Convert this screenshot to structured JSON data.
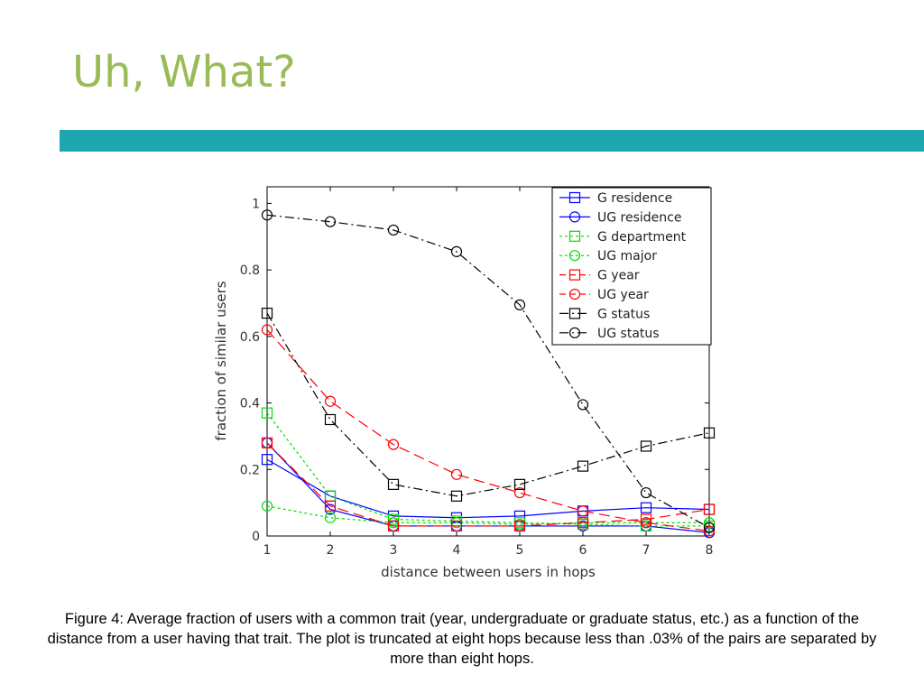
{
  "slide": {
    "title": "Uh, What?",
    "accent_color": "#9bbb59",
    "bar_color": "#1fa7b0"
  },
  "caption": "Figure 4: Average fraction of users with a common trait (year, undergraduate or graduate status, etc.) as a function of the distance from a user having that trait. The plot is truncated at eight hops because less than .03% of the pairs are separated by more than eight hops.",
  "chart_data": {
    "type": "line",
    "xlabel": "distance between users in hops",
    "ylabel": "fraction of similar users",
    "xlim": [
      1,
      8
    ],
    "ylim": [
      0,
      1.05
    ],
    "xticks": [
      "1",
      "2",
      "3",
      "4",
      "5",
      "6",
      "7",
      "8"
    ],
    "yticks": [
      "0",
      "0.2",
      "0.4",
      "0.6",
      "0.8",
      "1"
    ],
    "grid": false,
    "legend_position": "top-right",
    "x": [
      1,
      2,
      3,
      4,
      5,
      6,
      7,
      8
    ],
    "series": [
      {
        "name": "G residence",
        "color": "#0000ff",
        "dash": "solid",
        "marker": "square",
        "values": [
          0.23,
          0.12,
          0.06,
          0.055,
          0.06,
          0.075,
          0.085,
          0.08
        ]
      },
      {
        "name": "UG residence",
        "color": "#0000ff",
        "dash": "solid",
        "marker": "circle",
        "values": [
          0.28,
          0.08,
          0.03,
          0.03,
          0.03,
          0.03,
          0.03,
          0.01
        ]
      },
      {
        "name": "G department",
        "color": "#00dd00",
        "dash": "dotted",
        "marker": "square",
        "values": [
          0.37,
          0.12,
          0.05,
          0.045,
          0.04,
          0.035,
          0.03,
          0.03
        ]
      },
      {
        "name": "UG major",
        "color": "#00dd00",
        "dash": "dotted",
        "marker": "circle",
        "values": [
          0.09,
          0.055,
          0.04,
          0.04,
          0.035,
          0.04,
          0.04,
          0.04
        ]
      },
      {
        "name": "G year",
        "color": "#ff0000",
        "dash": "dashed",
        "marker": "square",
        "values": [
          0.28,
          0.09,
          0.03,
          0.03,
          0.03,
          0.04,
          0.05,
          0.08
        ]
      },
      {
        "name": "UG year",
        "color": "#ff0000",
        "dash": "dashed",
        "marker": "circle",
        "values": [
          0.62,
          0.405,
          0.275,
          0.185,
          0.13,
          0.075,
          0.04,
          0.015
        ]
      },
      {
        "name": "G status",
        "color": "#000000",
        "dash": "dashdot",
        "marker": "square",
        "values": [
          0.67,
          0.35,
          0.155,
          0.12,
          0.155,
          0.21,
          0.27,
          0.31
        ]
      },
      {
        "name": "UG status",
        "color": "#000000",
        "dash": "dashdot",
        "marker": "circle",
        "values": [
          0.965,
          0.945,
          0.92,
          0.855,
          0.695,
          0.395,
          0.13,
          0.025
        ]
      }
    ]
  }
}
